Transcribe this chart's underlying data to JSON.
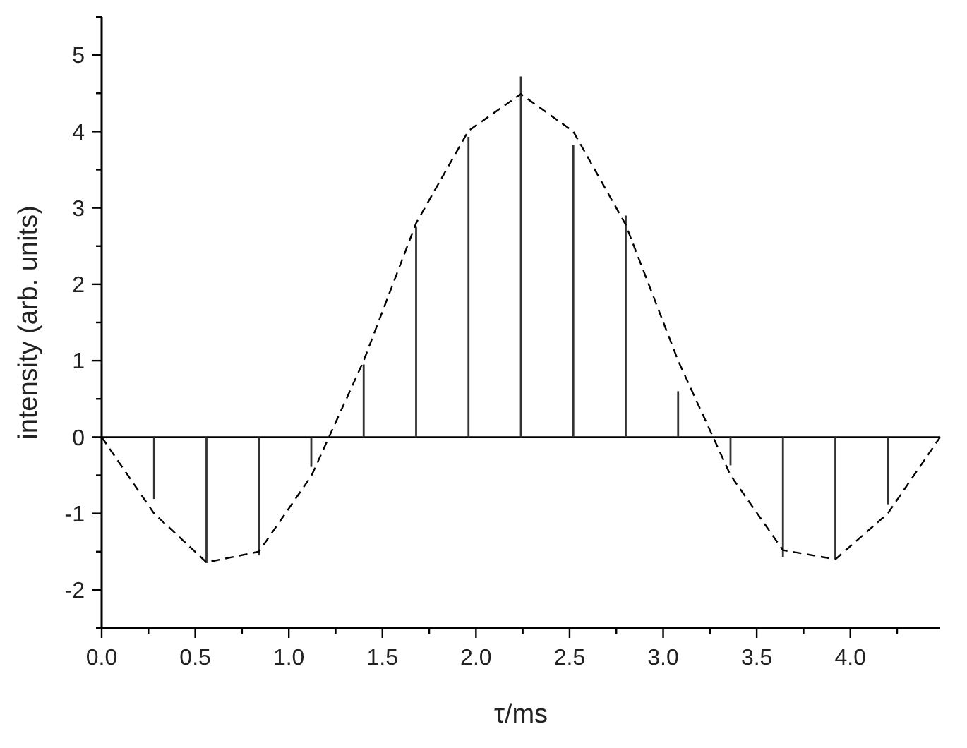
{
  "chart_data": {
    "type": "bar",
    "xlabel": "τ/ms",
    "ylabel": "intensity (arb. units)",
    "xlim": [
      0,
      4.48
    ],
    "ylim": [
      -2.5,
      5.5
    ],
    "xticks": [
      {
        "value": 0,
        "label": "0.0"
      },
      {
        "value": 0.25,
        "label": null
      },
      {
        "value": 0.5,
        "label": "0.5"
      },
      {
        "value": 0.75,
        "label": null
      },
      {
        "value": 1,
        "label": "1.0"
      },
      {
        "value": 1.25,
        "label": null
      },
      {
        "value": 1.5,
        "label": "1.5"
      },
      {
        "value": 1.75,
        "label": null
      },
      {
        "value": 2,
        "label": "2.0"
      },
      {
        "value": 2.25,
        "label": null
      },
      {
        "value": 2.5,
        "label": "2.5"
      },
      {
        "value": 2.75,
        "label": null
      },
      {
        "value": 3,
        "label": "3.0"
      },
      {
        "value": 3.25,
        "label": null
      },
      {
        "value": 3.5,
        "label": "3.5"
      },
      {
        "value": 3.75,
        "label": null
      },
      {
        "value": 4,
        "label": "4.0"
      },
      {
        "value": 4.25,
        "label": null
      }
    ],
    "yticks": [
      {
        "value": -2.5,
        "label": null
      },
      -2,
      {
        "value": -1.5,
        "label": null
      },
      -1,
      {
        "value": -0.5,
        "label": null
      },
      0,
      {
        "value": 0.5,
        "label": null
      },
      1,
      {
        "value": 1.5,
        "label": null
      },
      2,
      {
        "value": 2.5,
        "label": null
      },
      3,
      {
        "value": 3.5,
        "label": null
      },
      4,
      {
        "value": 4.5,
        "label": null
      },
      5,
      {
        "value": 5.5,
        "label": null
      }
    ],
    "marker": "none",
    "ref_lines": [
      {
        "axis": "y",
        "value": 0,
        "color": "#000000"
      }
    ],
    "series": [
      {
        "color": "#333333",
        "x": [
          0.28,
          0.56,
          0.84,
          1.12,
          1.4,
          1.68,
          1.96,
          2.24,
          2.52,
          2.8,
          3.08,
          3.36,
          3.64,
          3.92,
          4.2
        ],
        "values": [
          -0.81,
          -1.65,
          -1.55,
          -0.39,
          0.95,
          2.76,
          3.93,
          4.72,
          3.82,
          2.9,
          0.6,
          -0.37,
          -1.57,
          -1.6,
          -0.88
        ]
      },
      {
        "type": "line",
        "line_style": "dashed",
        "color": "#000000",
        "x": [
          0,
          0.28,
          0.56,
          0.84,
          1.12,
          1.4,
          1.68,
          1.96,
          2.24,
          2.52,
          2.8,
          3.08,
          3.36,
          3.64,
          3.92,
          4.2,
          4.48
        ],
        "values": [
          0,
          -1.0,
          -1.64,
          -1.5,
          -0.51,
          1.0,
          2.8,
          4.01,
          4.49,
          4.0,
          2.78,
          1.0,
          -0.5,
          -1.48,
          -1.6,
          -1.0,
          0
        ]
      }
    ]
  }
}
